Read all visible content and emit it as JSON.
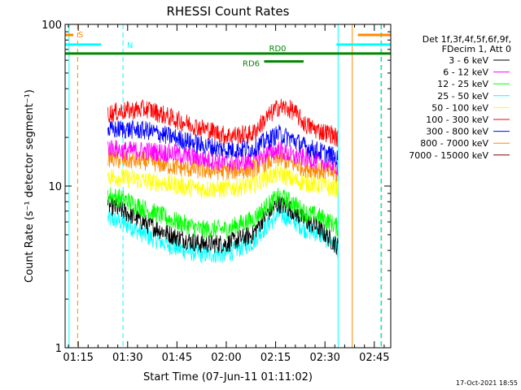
{
  "chart_data": {
    "type": "line",
    "title": "RHESSI Count Rates",
    "xlabel": "Start Time (07-Jun-11 01:11:02)",
    "ylabel": "Count Rate (s⁻¹ detector segment⁻¹)",
    "yscale": "log",
    "ylim": [
      1,
      100
    ],
    "xlim_minutes": [
      71,
      170
    ],
    "x_ticks": [
      {
        "m": 75,
        "label": "01:15"
      },
      {
        "m": 90,
        "label": "01:30"
      },
      {
        "m": 105,
        "label": "01:45"
      },
      {
        "m": 120,
        "label": "02:00"
      },
      {
        "m": 135,
        "label": "02:15"
      },
      {
        "m": 150,
        "label": "02:30"
      },
      {
        "m": 165,
        "label": "02:45"
      }
    ],
    "y_ticks": [
      {
        "v": 1,
        "label": "1"
      },
      {
        "v": 10,
        "label": "10"
      },
      {
        "v": 100,
        "label": "100"
      }
    ],
    "grid": false,
    "legend": {
      "placement": "right",
      "header": [
        "Det 1f,3f,4f,5f,6f,9f,",
        "FDecim 1, Att 0"
      ]
    },
    "series": [
      {
        "name": "3 - 6 keV",
        "color": "#000000",
        "x": [
          84,
          88,
          96,
          104,
          112,
          120,
          128,
          132,
          136,
          140,
          144,
          148,
          152,
          154
        ],
        "y": [
          7.6,
          7.1,
          5.8,
          4.9,
          4.4,
          4.4,
          5.0,
          6.6,
          7.8,
          7.1,
          6.1,
          5.5,
          4.6,
          4.2
        ]
      },
      {
        "name": "6 - 12 keV",
        "color": "#ff00ff",
        "x": [
          84,
          88,
          96,
          104,
          112,
          120,
          128,
          132,
          136,
          140,
          144,
          148,
          152,
          154
        ],
        "y": [
          17.5,
          16.6,
          16.5,
          15.9,
          14.8,
          13.9,
          14.3,
          15.8,
          16.8,
          15.3,
          14.9,
          14.3,
          13.6,
          13.2
        ]
      },
      {
        "name": "12 - 25 keV",
        "color": "#00ff00",
        "x": [
          84,
          88,
          96,
          104,
          112,
          120,
          128,
          132,
          136,
          140,
          144,
          148,
          152,
          154
        ],
        "y": [
          8.8,
          8.4,
          7.1,
          6.1,
          5.4,
          5.4,
          6.2,
          7.4,
          8.6,
          7.9,
          6.8,
          6.5,
          5.9,
          5.5
        ]
      },
      {
        "name": "25 - 50 keV",
        "color": "#00ffff",
        "x": [
          84,
          88,
          96,
          104,
          112,
          120,
          128,
          132,
          136,
          140,
          144,
          148,
          152,
          154
        ],
        "y": [
          6.3,
          6.0,
          4.9,
          4.2,
          3.8,
          3.8,
          4.5,
          5.6,
          6.7,
          6.2,
          5.4,
          5.1,
          4.5,
          4.1
        ]
      },
      {
        "name": "50 - 100 keV",
        "color": "#ffff00",
        "x": [
          84,
          88,
          96,
          104,
          112,
          120,
          128,
          132,
          136,
          140,
          144,
          148,
          152,
          154
        ],
        "y": [
          11.5,
          11.3,
          10.7,
          10.2,
          9.6,
          9.6,
          10.2,
          11.2,
          12.0,
          11.0,
          10.5,
          10.2,
          9.8,
          9.6
        ]
      },
      {
        "name": "100 - 300 keV",
        "color": "#ff0000",
        "x": [
          84,
          88,
          96,
          104,
          112,
          120,
          128,
          132,
          136,
          140,
          144,
          148,
          152,
          154
        ],
        "y": [
          28,
          29,
          30,
          26,
          23,
          20.5,
          21,
          26,
          31,
          29.5,
          24,
          22,
          21,
          19.5
        ]
      },
      {
        "name": "300 - 800 keV",
        "color": "#0000ff",
        "x": [
          84,
          88,
          96,
          104,
          112,
          120,
          128,
          132,
          136,
          140,
          144,
          148,
          152,
          154
        ],
        "y": [
          22,
          22.5,
          22,
          20,
          18,
          16.8,
          17,
          19,
          21,
          19.5,
          17.5,
          16.5,
          15.5,
          14.5
        ]
      },
      {
        "name": "800 - 7000 keV",
        "color": "#ff8800",
        "x": [
          84,
          88,
          96,
          104,
          112,
          120,
          128,
          132,
          136,
          140,
          144,
          148,
          152,
          154
        ],
        "y": [
          15,
          14.5,
          14.3,
          13.2,
          12.6,
          12.4,
          12.8,
          14.0,
          15.0,
          13.8,
          13.0,
          12.6,
          12.1,
          11.6
        ]
      },
      {
        "name": "7000 - 15000 keV",
        "color": "#800000",
        "x": [],
        "y": []
      }
    ],
    "attenuator_bars": [
      {
        "label": "S",
        "color": "#ff8800",
        "segments": [
          [
            71,
            73.5
          ],
          [
            160,
            170
          ]
        ],
        "y": 86
      },
      {
        "label": "N",
        "color": "#00ffff",
        "segments": [
          [
            71,
            82
          ],
          [
            153.5,
            170
          ]
        ],
        "y": 75
      },
      {
        "label": "RD0",
        "color": "#008800",
        "segments": [
          [
            71,
            170
          ]
        ],
        "y": 66
      },
      {
        "label": "RD6",
        "color": "#008800",
        "segments": [
          [
            131.5,
            143.5
          ]
        ],
        "y": 59
      }
    ],
    "vlines": [
      {
        "m": 72.2,
        "color": "#00ffff",
        "style": "solid"
      },
      {
        "m": 74.8,
        "color": "#ff8800",
        "style": "dashed"
      },
      {
        "m": 88.6,
        "color": "#00ffff",
        "style": "dashed"
      },
      {
        "m": 154.0,
        "color": "#00ffff",
        "style": "solid"
      },
      {
        "m": 158.3,
        "color": "#ff8800",
        "style": "solid"
      },
      {
        "m": 167.0,
        "color": "#00ffff",
        "style": "dashed"
      },
      {
        "m": 167.2,
        "color": "#ff8800",
        "style": "dashed"
      }
    ]
  },
  "footer_date": "17-Oct-2021 18:55"
}
